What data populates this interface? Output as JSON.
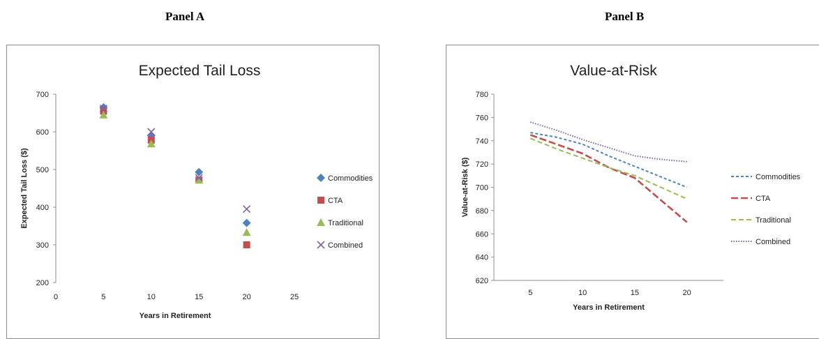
{
  "panels": {
    "a_label": "Panel A",
    "b_label": "Panel B"
  },
  "chart_data": [
    {
      "type": "scatter",
      "title": "Expected Tail Loss",
      "xlabel": "Years in Retirement",
      "ylabel": "Expected Tail Loss ($)",
      "xlim": [
        0,
        25
      ],
      "ylim": [
        200,
        700
      ],
      "xticks": [
        0,
        5,
        10,
        15,
        20,
        25
      ],
      "yticks": [
        200,
        300,
        400,
        500,
        600,
        700
      ],
      "legend_position": "right",
      "grid": false,
      "series": [
        {
          "name": "Commodities",
          "x": [
            5,
            10,
            15,
            20
          ],
          "y": [
            665,
            590,
            493,
            358
          ],
          "color": "#4f81bd",
          "marker": "diamond"
        },
        {
          "name": "CTA",
          "x": [
            5,
            10,
            15,
            20
          ],
          "y": [
            655,
            578,
            472,
            300
          ],
          "color": "#c0504d",
          "marker": "square"
        },
        {
          "name": "Traditional",
          "x": [
            5,
            10,
            15,
            20
          ],
          "y": [
            645,
            568,
            472,
            333
          ],
          "color": "#9bbb59",
          "marker": "triangle"
        },
        {
          "name": "Combined",
          "x": [
            5,
            10,
            15,
            20
          ],
          "y": [
            662,
            600,
            478,
            395
          ],
          "color": "#8064a2",
          "marker": "x"
        }
      ]
    },
    {
      "type": "line",
      "title": "Value-at-Risk",
      "xlabel": "Years in Retirement",
      "ylabel": "Value-at-Risk ($)",
      "xlim": [
        1.5,
        23.5
      ],
      "ylim": [
        620,
        780
      ],
      "xticks": [
        5,
        10,
        15,
        20
      ],
      "yticks": [
        620,
        640,
        660,
        680,
        700,
        720,
        740,
        760,
        780
      ],
      "legend_position": "right",
      "grid": false,
      "series": [
        {
          "name": "Commodities",
          "x": [
            5,
            7.5,
            10,
            12.5,
            15,
            17.5,
            20
          ],
          "y": [
            747,
            743,
            737,
            727,
            718,
            709,
            700
          ],
          "color": "#4f81bd",
          "dash": "short"
        },
        {
          "name": "CTA",
          "x": [
            5,
            7.5,
            10,
            12.5,
            15,
            17.5,
            20
          ],
          "y": [
            745,
            737,
            729,
            717,
            708,
            689,
            670
          ],
          "color": "#c0504d",
          "dash": "long"
        },
        {
          "name": "Traditional",
          "x": [
            5,
            7.5,
            10,
            12.5,
            15,
            17.5,
            20
          ],
          "y": [
            742,
            733,
            725,
            717,
            710,
            700,
            690
          ],
          "color": "#9bbb59",
          "dash": "medium"
        },
        {
          "name": "Combined",
          "x": [
            5,
            7.5,
            10,
            12.5,
            15,
            17.5,
            20
          ],
          "y": [
            756,
            749,
            741,
            734,
            727,
            724,
            722
          ],
          "color": "#8064a2",
          "dash": "dot"
        }
      ]
    }
  ]
}
